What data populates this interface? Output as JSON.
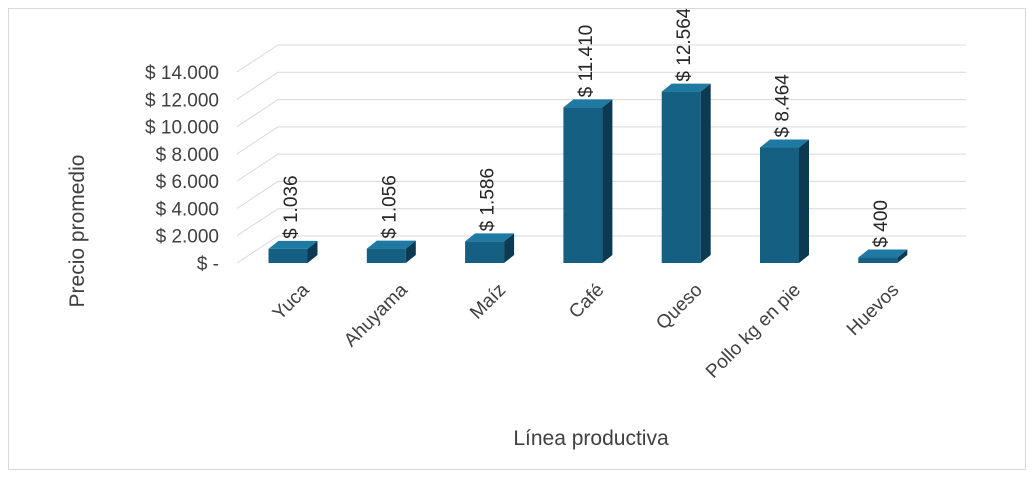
{
  "chart_data": {
    "type": "bar",
    "style": "3d-column",
    "categories": [
      "Yuca",
      "Ahuyama",
      "Maíz",
      "Café",
      "Queso",
      "Pollo kg en pie",
      "Huevos"
    ],
    "values": [
      1036,
      1056,
      1586,
      11410,
      12564,
      8464,
      400
    ],
    "data_labels": [
      "$ 1.036",
      "$ 1.056",
      "$ 1.586",
      "$ 11.410",
      "$ 12.564",
      "$ 8.464",
      "$ 400"
    ],
    "y_ticks": [
      0,
      2000,
      4000,
      6000,
      8000,
      10000,
      12000,
      14000
    ],
    "y_tick_labels": [
      "$ -",
      "$ 2.000",
      "$ 4.000",
      "$ 6.000",
      "$ 8.000",
      "$ 10.000",
      "$ 12.000",
      "$ 14.000"
    ],
    "ylim": [
      0,
      14000
    ],
    "xlabel": "Línea productiva",
    "ylabel": "Precio promedio",
    "grid": true,
    "legend": "none",
    "colors": {
      "bar_front": "#156082",
      "bar_side": "#0c3a52",
      "bar_top": "#1f7aa3",
      "grid": "#d9d9d9"
    }
  }
}
